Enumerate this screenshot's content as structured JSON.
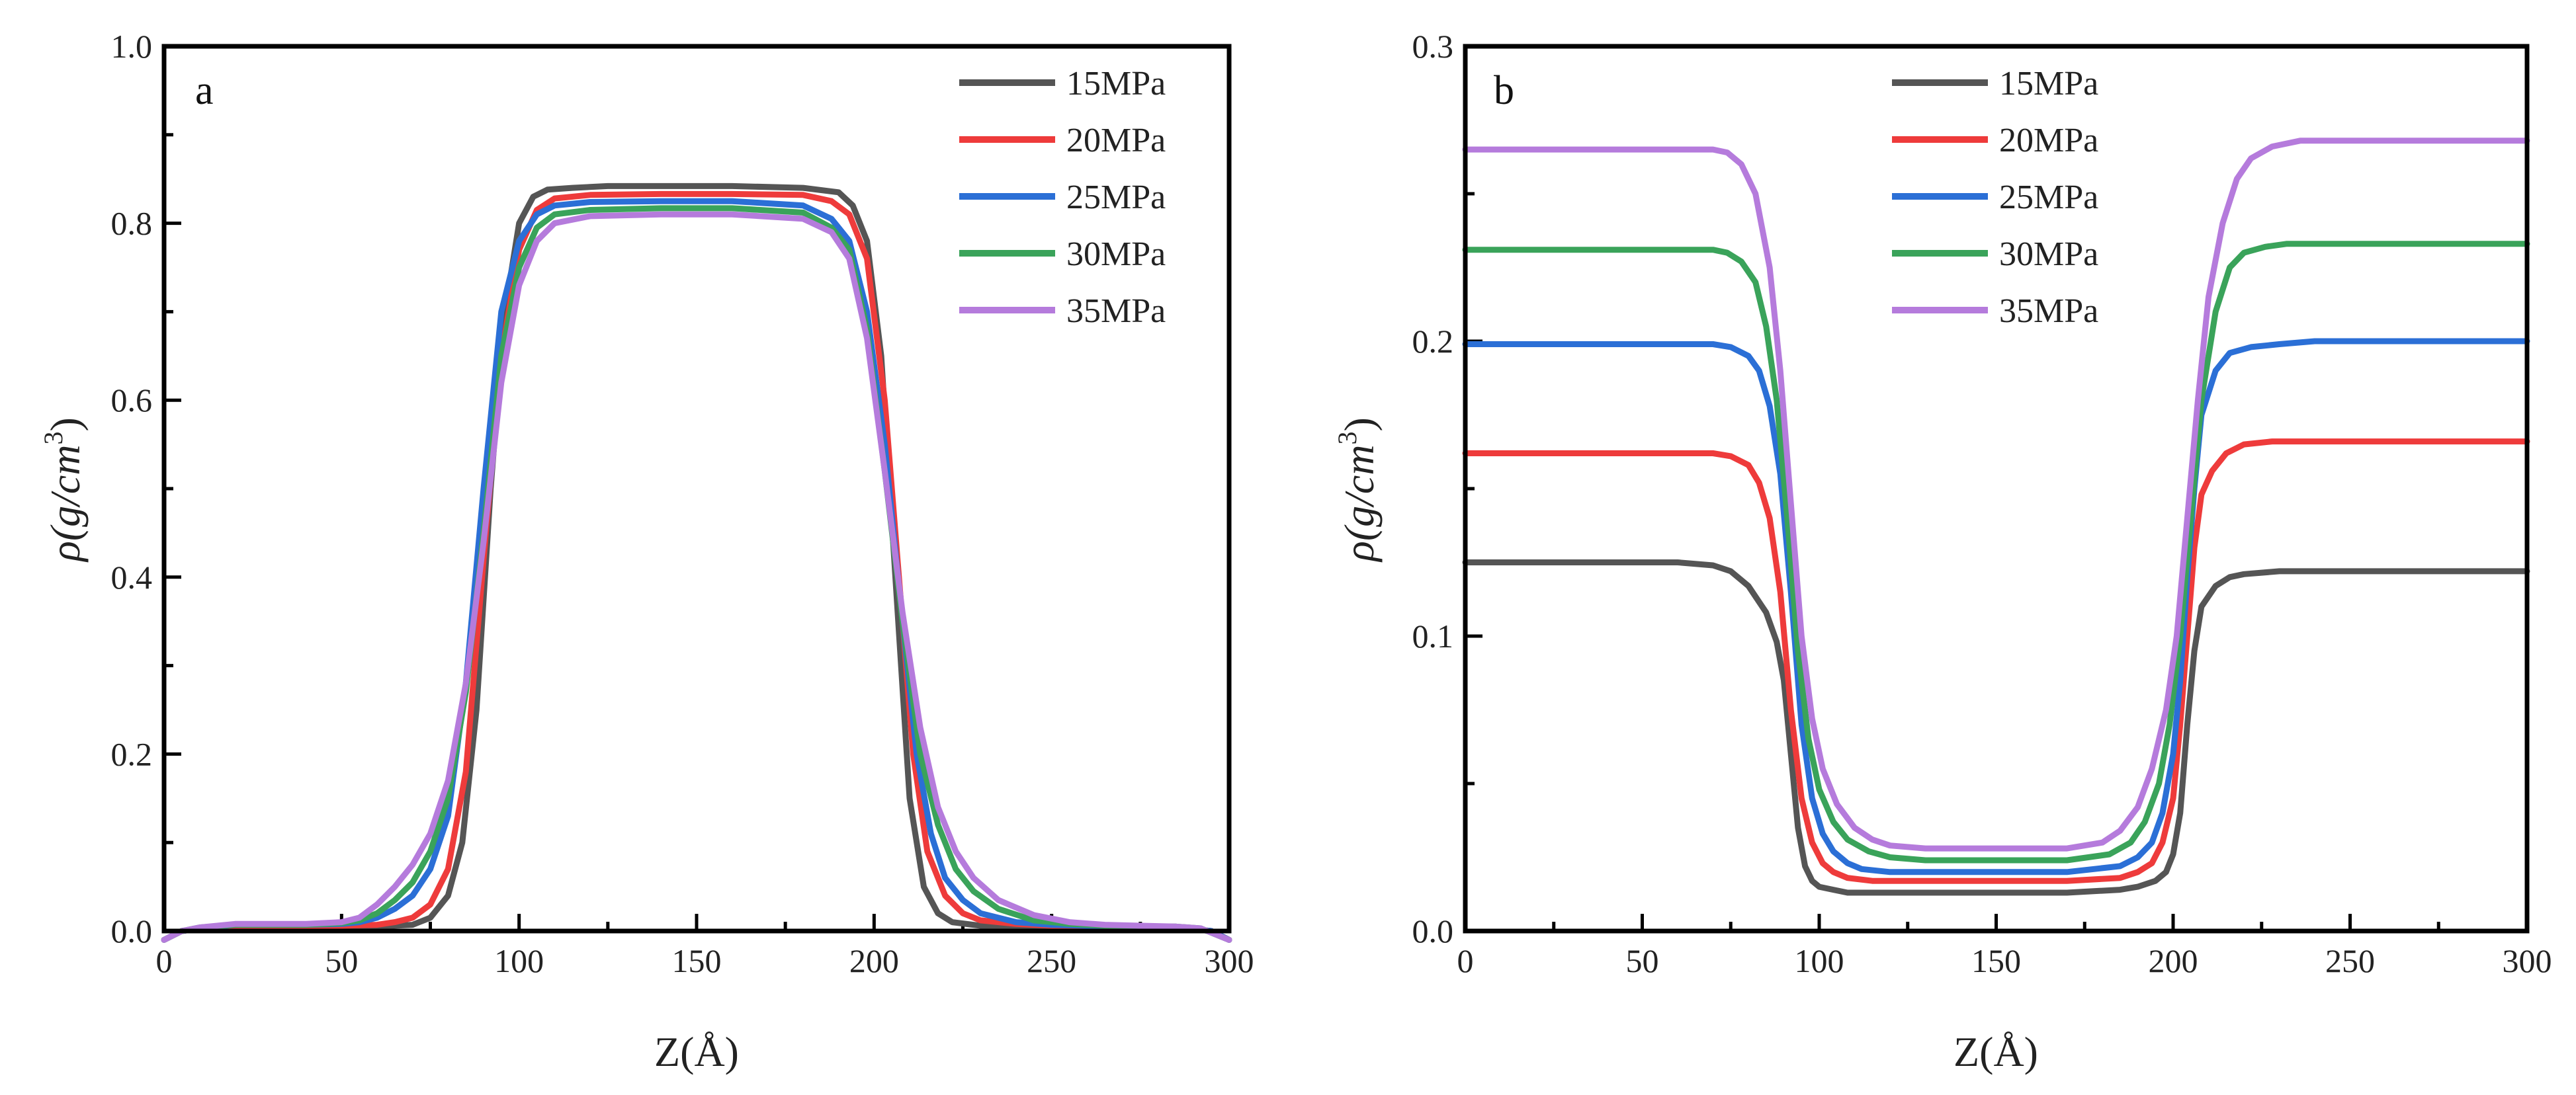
{
  "chart_data": [
    {
      "type": "line",
      "panel_label": "a",
      "xlabel": "Z(Å)",
      "ylabel_main": "ρ(g/cm",
      "ylabel_sup": "3",
      "ylabel_close": ")",
      "xlim": [
        0,
        300
      ],
      "ylim": [
        0.0,
        1.0
      ],
      "xticks": [
        0,
        50,
        100,
        150,
        200,
        250,
        300
      ],
      "xtick_labels": [
        "0",
        "50",
        "100",
        "150",
        "200",
        "250",
        "300"
      ],
      "yticks": [
        0.0,
        0.2,
        0.4,
        0.6,
        0.8,
        1.0
      ],
      "ytick_labels": [
        "0.0",
        "0.2",
        "0.4",
        "0.6",
        "0.8",
        "1.0"
      ],
      "legend_position": "top-right",
      "series": [
        {
          "name": "15MPa",
          "color": "#555555",
          "x": [
            0,
            5,
            10,
            20,
            30,
            40,
            50,
            60,
            70,
            75,
            80,
            84,
            88,
            92,
            96,
            100,
            104,
            108,
            115,
            125,
            140,
            160,
            180,
            190,
            194,
            198,
            202,
            206,
            210,
            214,
            218,
            222,
            230,
            240,
            250,
            260,
            270,
            280,
            290,
            295,
            300
          ],
          "y": [
            -0.01,
            0.0,
            0.003,
            0.005,
            0.005,
            0.005,
            0.005,
            0.005,
            0.007,
            0.015,
            0.04,
            0.1,
            0.25,
            0.5,
            0.7,
            0.8,
            0.83,
            0.838,
            0.84,
            0.842,
            0.842,
            0.842,
            0.84,
            0.835,
            0.82,
            0.78,
            0.65,
            0.4,
            0.15,
            0.05,
            0.02,
            0.01,
            0.006,
            0.005,
            0.005,
            0.005,
            0.005,
            0.004,
            0.002,
            0.0,
            -0.01
          ]
        },
        {
          "name": "20MPa",
          "color": "#ee3b3b",
          "x": [
            0,
            5,
            10,
            20,
            30,
            40,
            50,
            60,
            65,
            70,
            75,
            80,
            85,
            90,
            95,
            100,
            105,
            110,
            120,
            140,
            160,
            180,
            188,
            193,
            198,
            203,
            207,
            211,
            215,
            220,
            225,
            230,
            240,
            250,
            260,
            270,
            280,
            290,
            295,
            300
          ],
          "y": [
            -0.01,
            0.0,
            0.003,
            0.006,
            0.006,
            0.006,
            0.006,
            0.007,
            0.01,
            0.015,
            0.03,
            0.07,
            0.18,
            0.42,
            0.65,
            0.77,
            0.815,
            0.828,
            0.832,
            0.833,
            0.833,
            0.832,
            0.825,
            0.81,
            0.76,
            0.6,
            0.4,
            0.2,
            0.09,
            0.04,
            0.02,
            0.012,
            0.008,
            0.006,
            0.005,
            0.005,
            0.004,
            0.002,
            0.0,
            -0.01
          ]
        },
        {
          "name": "25MPa",
          "color": "#2b6fd6",
          "x": [
            0,
            5,
            10,
            20,
            30,
            40,
            50,
            55,
            60,
            65,
            70,
            75,
            80,
            85,
            90,
            95,
            100,
            105,
            110,
            120,
            140,
            160,
            180,
            188,
            193,
            198,
            203,
            208,
            212,
            216,
            220,
            225,
            230,
            240,
            250,
            260,
            270,
            280,
            290,
            295,
            300
          ],
          "y": [
            -0.01,
            0.0,
            0.003,
            0.007,
            0.007,
            0.007,
            0.008,
            0.01,
            0.015,
            0.025,
            0.04,
            0.07,
            0.13,
            0.28,
            0.5,
            0.7,
            0.78,
            0.81,
            0.82,
            0.824,
            0.825,
            0.825,
            0.82,
            0.805,
            0.78,
            0.7,
            0.55,
            0.35,
            0.2,
            0.11,
            0.06,
            0.035,
            0.02,
            0.01,
            0.007,
            0.006,
            0.005,
            0.005,
            0.002,
            0.0,
            -0.01
          ]
        },
        {
          "name": "30MPa",
          "color": "#3aa35a",
          "x": [
            0,
            5,
            10,
            20,
            30,
            40,
            50,
            55,
            60,
            65,
            70,
            75,
            80,
            85,
            90,
            95,
            100,
            105,
            110,
            120,
            140,
            160,
            180,
            188,
            193,
            198,
            203,
            208,
            213,
            218,
            223,
            228,
            235,
            245,
            255,
            265,
            275,
            285,
            292,
            300
          ],
          "y": [
            -0.01,
            0.0,
            0.004,
            0.007,
            0.007,
            0.007,
            0.009,
            0.012,
            0.02,
            0.035,
            0.055,
            0.09,
            0.15,
            0.27,
            0.45,
            0.65,
            0.75,
            0.795,
            0.81,
            0.815,
            0.817,
            0.817,
            0.812,
            0.795,
            0.77,
            0.68,
            0.52,
            0.35,
            0.2,
            0.12,
            0.07,
            0.045,
            0.025,
            0.012,
            0.008,
            0.006,
            0.005,
            0.005,
            0.003,
            -0.01
          ]
        },
        {
          "name": "35MPa",
          "color": "#b57bdc",
          "x": [
            0,
            5,
            10,
            20,
            30,
            40,
            50,
            55,
            60,
            65,
            70,
            75,
            80,
            85,
            90,
            95,
            100,
            105,
            110,
            120,
            140,
            160,
            180,
            188,
            193,
            198,
            203,
            208,
            213,
            218,
            223,
            228,
            235,
            245,
            255,
            265,
            275,
            285,
            292,
            300
          ],
          "y": [
            -0.01,
            0.0,
            0.004,
            0.008,
            0.008,
            0.008,
            0.01,
            0.015,
            0.03,
            0.05,
            0.075,
            0.11,
            0.17,
            0.28,
            0.44,
            0.62,
            0.73,
            0.78,
            0.8,
            0.808,
            0.81,
            0.81,
            0.805,
            0.79,
            0.76,
            0.67,
            0.52,
            0.36,
            0.23,
            0.14,
            0.09,
            0.06,
            0.035,
            0.018,
            0.01,
            0.007,
            0.006,
            0.005,
            0.003,
            -0.01
          ]
        }
      ]
    },
    {
      "type": "line",
      "panel_label": "b",
      "xlabel": "Z(Å)",
      "ylabel_main": "ρ(g/cm",
      "ylabel_sup": "3",
      "ylabel_close": ")",
      "xlim": [
        0,
        300
      ],
      "ylim": [
        0.0,
        0.3
      ],
      "xticks": [
        0,
        50,
        100,
        150,
        200,
        250,
        300
      ],
      "xtick_labels": [
        "0",
        "50",
        "100",
        "150",
        "200",
        "250",
        "300"
      ],
      "yticks": [
        0.0,
        0.1,
        0.2,
        0.3
      ],
      "ytick_labels": [
        "0.0",
        "0.1",
        "0.2",
        "0.3"
      ],
      "legend_position": "top-center",
      "series": [
        {
          "name": "15MPa",
          "color": "#555555",
          "x": [
            0,
            20,
            40,
            60,
            70,
            75,
            80,
            85,
            88,
            90,
            92,
            94,
            96,
            98,
            100,
            104,
            108,
            115,
            130,
            150,
            170,
            185,
            190,
            195,
            198,
            200,
            202,
            204,
            206,
            208,
            212,
            216,
            220,
            230,
            250,
            270,
            300
          ],
          "y": [
            0.125,
            0.125,
            0.125,
            0.125,
            0.124,
            0.122,
            0.117,
            0.108,
            0.098,
            0.085,
            0.06,
            0.035,
            0.022,
            0.017,
            0.015,
            0.014,
            0.013,
            0.013,
            0.013,
            0.013,
            0.013,
            0.014,
            0.015,
            0.017,
            0.02,
            0.026,
            0.04,
            0.07,
            0.095,
            0.11,
            0.117,
            0.12,
            0.121,
            0.122,
            0.122,
            0.122,
            0.122
          ]
        },
        {
          "name": "20MPa",
          "color": "#ee3b3b",
          "x": [
            0,
            20,
            40,
            60,
            70,
            75,
            80,
            83,
            86,
            89,
            92,
            95,
            98,
            101,
            104,
            108,
            115,
            130,
            150,
            170,
            185,
            190,
            194,
            197,
            200,
            202,
            204,
            206,
            208,
            211,
            215,
            220,
            228,
            240,
            260,
            280,
            300
          ],
          "y": [
            0.162,
            0.162,
            0.162,
            0.162,
            0.162,
            0.161,
            0.158,
            0.152,
            0.14,
            0.115,
            0.075,
            0.045,
            0.03,
            0.023,
            0.02,
            0.018,
            0.017,
            0.017,
            0.017,
            0.017,
            0.018,
            0.02,
            0.023,
            0.03,
            0.045,
            0.07,
            0.1,
            0.13,
            0.148,
            0.156,
            0.162,
            0.165,
            0.166,
            0.166,
            0.166,
            0.166,
            0.166
          ]
        },
        {
          "name": "25MPa",
          "color": "#2b6fd6",
          "x": [
            0,
            20,
            40,
            60,
            70,
            75,
            80,
            83,
            86,
            89,
            92,
            95,
            98,
            101,
            104,
            108,
            112,
            120,
            130,
            150,
            170,
            185,
            190,
            194,
            197,
            200,
            202,
            204,
            206,
            208,
            212,
            216,
            222,
            230,
            240,
            260,
            280,
            300
          ],
          "y": [
            0.199,
            0.199,
            0.199,
            0.199,
            0.199,
            0.198,
            0.195,
            0.19,
            0.178,
            0.155,
            0.115,
            0.07,
            0.045,
            0.033,
            0.027,
            0.023,
            0.021,
            0.02,
            0.02,
            0.02,
            0.02,
            0.022,
            0.025,
            0.03,
            0.04,
            0.06,
            0.085,
            0.12,
            0.15,
            0.175,
            0.19,
            0.196,
            0.198,
            0.199,
            0.2,
            0.2,
            0.2,
            0.2
          ]
        },
        {
          "name": "30MPa",
          "color": "#3aa35a",
          "x": [
            0,
            20,
            40,
            60,
            70,
            74,
            78,
            82,
            85,
            88,
            91,
            94,
            97,
            100,
            104,
            108,
            114,
            120,
            130,
            150,
            170,
            182,
            188,
            192,
            196,
            199,
            202,
            205,
            208,
            212,
            216,
            220,
            226,
            232,
            240,
            260,
            280,
            300
          ],
          "y": [
            0.231,
            0.231,
            0.231,
            0.231,
            0.231,
            0.23,
            0.227,
            0.22,
            0.205,
            0.18,
            0.14,
            0.095,
            0.065,
            0.048,
            0.037,
            0.031,
            0.027,
            0.025,
            0.024,
            0.024,
            0.024,
            0.026,
            0.03,
            0.037,
            0.05,
            0.07,
            0.1,
            0.14,
            0.18,
            0.21,
            0.225,
            0.23,
            0.232,
            0.233,
            0.233,
            0.233,
            0.233,
            0.233
          ]
        },
        {
          "name": "35MPa",
          "color": "#b57bdc",
          "x": [
            0,
            20,
            40,
            60,
            70,
            74,
            78,
            82,
            86,
            89,
            92,
            95,
            98,
            101,
            105,
            110,
            115,
            120,
            130,
            150,
            170,
            180,
            185,
            190,
            194,
            198,
            201,
            204,
            207,
            210,
            214,
            218,
            222,
            228,
            236,
            250,
            270,
            300
          ],
          "y": [
            0.265,
            0.265,
            0.265,
            0.265,
            0.265,
            0.264,
            0.26,
            0.25,
            0.225,
            0.19,
            0.145,
            0.1,
            0.072,
            0.055,
            0.043,
            0.035,
            0.031,
            0.029,
            0.028,
            0.028,
            0.028,
            0.03,
            0.034,
            0.042,
            0.055,
            0.075,
            0.1,
            0.14,
            0.18,
            0.215,
            0.24,
            0.255,
            0.262,
            0.266,
            0.268,
            0.268,
            0.268,
            0.268
          ]
        }
      ]
    }
  ]
}
